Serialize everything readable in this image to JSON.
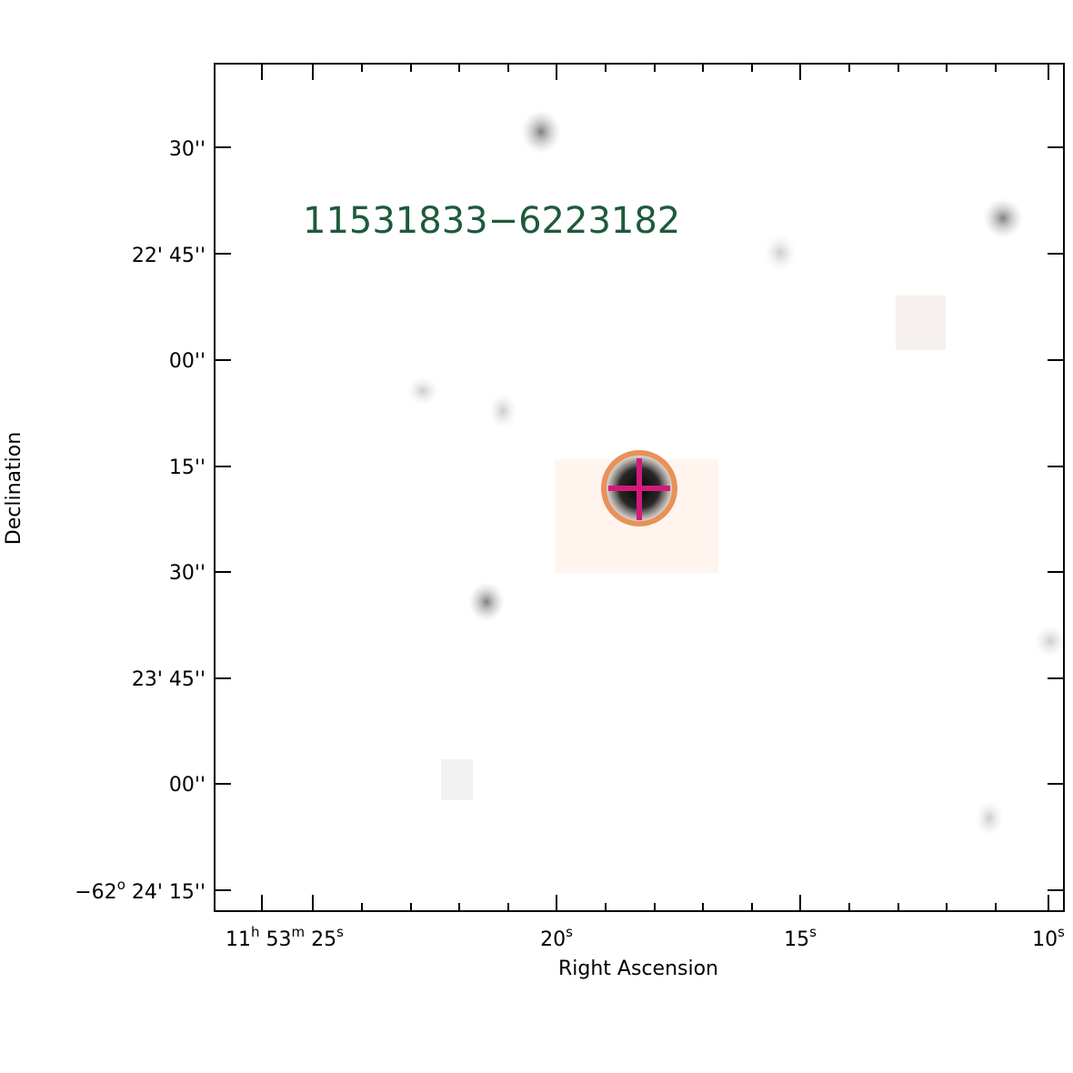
{
  "target": {
    "name": "11531833−6223182",
    "name_color": "#1e5a3c"
  },
  "axes": {
    "x_title": "Right Ascension",
    "y_title": "Declination",
    "x_ticks": [
      {
        "parts": [
          "11",
          "h",
          " 53",
          "m",
          " 25",
          "s"
        ]
      },
      {
        "parts": [
          "20",
          "s"
        ]
      },
      {
        "parts": [
          "15",
          "s"
        ]
      },
      {
        "parts": [
          "10",
          "s"
        ]
      }
    ],
    "y_ticks": [
      {
        "parts": [
          "30''"
        ]
      },
      {
        "parts": [
          "22' 45''"
        ]
      },
      {
        "parts": [
          "00''"
        ]
      },
      {
        "parts": [
          "15''"
        ]
      },
      {
        "parts": [
          "30''"
        ]
      },
      {
        "parts": [
          "23' 45''"
        ]
      },
      {
        "parts": [
          "00''"
        ]
      },
      {
        "parts": [
          "−62",
          "o",
          " 24' 15''"
        ]
      }
    ]
  },
  "marker": {
    "circle_color": "#e8915a",
    "cross_color": "#d4197a"
  }
}
